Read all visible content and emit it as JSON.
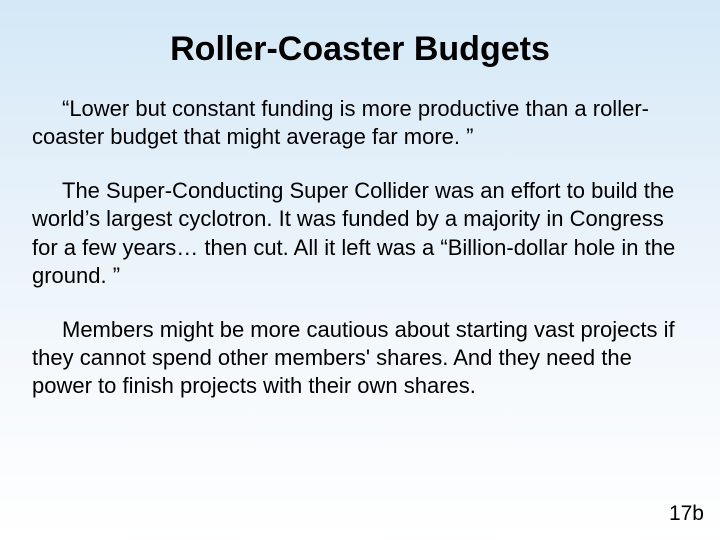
{
  "slide": {
    "title": "Roller-Coaster Budgets",
    "para1": "“Lower but constant funding is more productive than a roller-coaster budget that might average far more. ”",
    "para2": "The Super-Conducting Super Collider was an effort to build the world’s largest cyclotron.  It was funded by a majority in Congress for a few years… then cut.  All it left was a “Billion-dollar hole in the ground. ”",
    "para3": "Members might be more cautious about starting vast projects if they cannot spend other members' shares.  And they need the power to finish projects with their own shares.",
    "page_number": "17b"
  },
  "style": {
    "background_gradient_top": "#d4e8f7",
    "background_gradient_bottom": "#ffffff",
    "text_color": "#000000",
    "title_fontsize": 34,
    "body_fontsize": 22,
    "font_family": "Arial"
  }
}
